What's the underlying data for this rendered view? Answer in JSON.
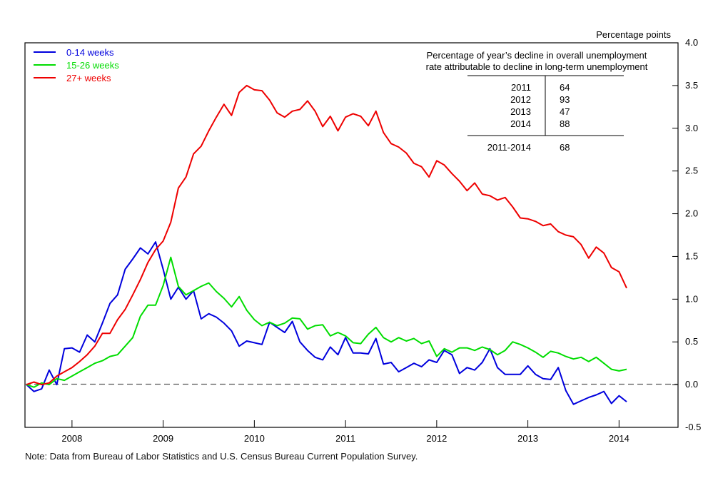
{
  "chart_data": {
    "type": "line",
    "ylabel": "Percentage points",
    "ylim": [
      -0.5,
      4.0
    ],
    "y_ticks": [
      "4.0",
      "3.5",
      "3.0",
      "2.5",
      "2.0",
      "1.5",
      "1.0",
      "0.5",
      "0.0",
      "-0.5"
    ],
    "x_ticks": [
      "2008",
      "2009",
      "2010",
      "2011",
      "2012",
      "2013",
      "2014"
    ],
    "grid": false,
    "legend_position": "top-left",
    "zero_line": "dashed",
    "series": [
      {
        "name": "0-14 weeks",
        "color": "#0000dd",
        "values": [
          0.0,
          -0.08,
          -0.05,
          0.17,
          0.0,
          0.42,
          0.43,
          0.38,
          0.58,
          0.5,
          0.72,
          0.95,
          1.05,
          1.35,
          1.47,
          1.6,
          1.53,
          1.67,
          1.35,
          1.0,
          1.14,
          1.0,
          1.1,
          0.77,
          0.83,
          0.79,
          0.72,
          0.63,
          0.45,
          0.51,
          0.49,
          0.47,
          0.73,
          0.67,
          0.61,
          0.74,
          0.5,
          0.4,
          0.32,
          0.29,
          0.44,
          0.35,
          0.55,
          0.37,
          0.37,
          0.36,
          0.54,
          0.24,
          0.26,
          0.15,
          0.2,
          0.25,
          0.21,
          0.29,
          0.26,
          0.4,
          0.35,
          0.13,
          0.2,
          0.17,
          0.26,
          0.42,
          0.2,
          0.12,
          0.12,
          0.12,
          0.22,
          0.12,
          0.07,
          0.06,
          0.2,
          -0.07,
          -0.23,
          -0.19,
          -0.15,
          -0.12,
          -0.08,
          -0.22,
          -0.13,
          -0.2
        ]
      },
      {
        "name": "15-26 weeks",
        "color": "#00dd00",
        "values": [
          0.0,
          -0.03,
          0.02,
          0.0,
          0.07,
          0.05,
          0.1,
          0.15,
          0.2,
          0.25,
          0.28,
          0.33,
          0.35,
          0.45,
          0.55,
          0.8,
          0.93,
          0.93,
          1.16,
          1.49,
          1.15,
          1.05,
          1.1,
          1.15,
          1.19,
          1.09,
          1.01,
          0.91,
          1.03,
          0.87,
          0.76,
          0.69,
          0.73,
          0.69,
          0.72,
          0.78,
          0.77,
          0.65,
          0.69,
          0.7,
          0.57,
          0.61,
          0.57,
          0.49,
          0.48,
          0.59,
          0.67,
          0.55,
          0.5,
          0.55,
          0.51,
          0.54,
          0.48,
          0.51,
          0.33,
          0.42,
          0.38,
          0.43,
          0.43,
          0.4,
          0.44,
          0.41,
          0.35,
          0.4,
          0.5,
          0.47,
          0.43,
          0.38,
          0.32,
          0.39,
          0.37,
          0.33,
          0.3,
          0.32,
          0.27,
          0.32,
          0.25,
          0.18,
          0.16,
          0.18
        ]
      },
      {
        "name": "27+ weeks",
        "color": "#ee0000",
        "values": [
          0.0,
          0.03,
          0.0,
          0.02,
          0.1,
          0.15,
          0.2,
          0.27,
          0.35,
          0.45,
          0.6,
          0.6,
          0.76,
          0.88,
          1.05,
          1.23,
          1.43,
          1.58,
          1.68,
          1.9,
          2.3,
          2.43,
          2.7,
          2.79,
          2.97,
          3.13,
          3.28,
          3.15,
          3.42,
          3.5,
          3.45,
          3.44,
          3.33,
          3.18,
          3.13,
          3.2,
          3.22,
          3.32,
          3.2,
          3.02,
          3.14,
          2.97,
          3.13,
          3.17,
          3.14,
          3.03,
          3.2,
          2.95,
          2.82,
          2.78,
          2.71,
          2.59,
          2.55,
          2.43,
          2.62,
          2.57,
          2.47,
          2.38,
          2.27,
          2.36,
          2.23,
          2.21,
          2.16,
          2.19,
          2.08,
          1.95,
          1.94,
          1.91,
          1.86,
          1.88,
          1.79,
          1.75,
          1.73,
          1.64,
          1.48,
          1.61,
          1.54,
          1.37,
          1.32,
          1.13
        ]
      }
    ]
  },
  "table": {
    "title_line1": "Percentage of year’s decline in overall unemployment",
    "title_line2": "rate attributable to decline in long-term unemployment",
    "rows": [
      {
        "year": "2011",
        "value": "64"
      },
      {
        "year": "2012",
        "value": "93"
      },
      {
        "year": "2013",
        "value": "47"
      },
      {
        "year": "2014",
        "value": "88"
      }
    ],
    "total": {
      "year": "2011-2014",
      "value": "68"
    }
  },
  "note": "Note: Data from Bureau of Labor Statistics and U.S. Census Bureau Current Population Survey."
}
